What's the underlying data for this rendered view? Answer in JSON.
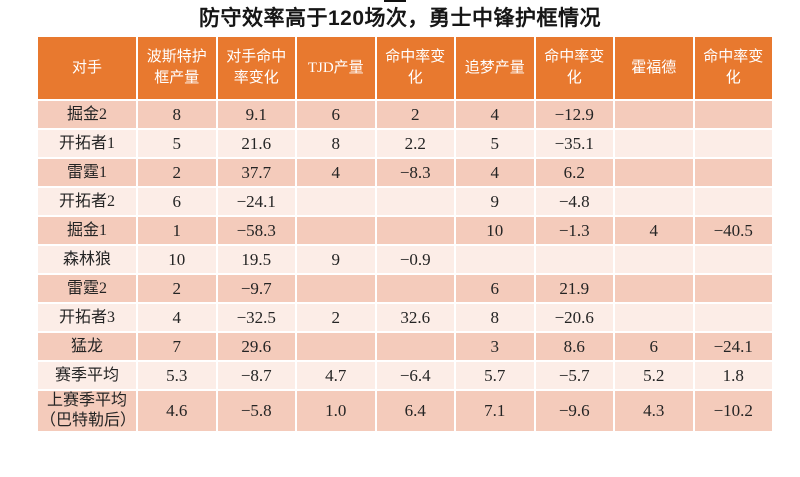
{
  "title": "防守效率高于120场次，勇士中锋护框情况",
  "colors": {
    "header_bg": "#e8792f",
    "row_dark": "#f4cbbb",
    "row_light": "#fcede7",
    "highlight_green": "#2aa368",
    "text": "#242424"
  },
  "chart_data": {
    "type": "table",
    "title": "防守效率高于120场次，勇士中锋护框情况",
    "columns": [
      "对手",
      "波斯特护框产量",
      "对手命中率变化",
      "TJD产量",
      "命中率变化",
      "追梦产量",
      "命中率变化",
      "霍福德",
      "命中率变化"
    ],
    "rows": [
      {
        "label": "掘金2",
        "cells": [
          {
            "v": "8"
          },
          {
            "v": "9.1",
            "green": true
          },
          {
            "v": "6"
          },
          {
            "v": "2",
            "green": true
          },
          {
            "v": "4",
            "green": true
          },
          {
            "v": "-12.9"
          },
          {
            "v": ""
          },
          {
            "v": ""
          }
        ]
      },
      {
        "label": "开拓者1",
        "cells": [
          {
            "v": "5",
            "green": true
          },
          {
            "v": "21.6",
            "green": true
          },
          {
            "v": "8"
          },
          {
            "v": "2.2",
            "green": true
          },
          {
            "v": "5",
            "green": true
          },
          {
            "v": "-35.1"
          },
          {
            "v": ""
          },
          {
            "v": ""
          }
        ]
      },
      {
        "label": "雷霆1",
        "cells": [
          {
            "v": "2",
            "green": true
          },
          {
            "v": "37.7",
            "green": true
          },
          {
            "v": "4",
            "green": true
          },
          {
            "v": "-8.3"
          },
          {
            "v": "4",
            "green": true
          },
          {
            "v": "6.2",
            "green": true
          },
          {
            "v": ""
          },
          {
            "v": ""
          }
        ]
      },
      {
        "label": "开拓者2",
        "cells": [
          {
            "v": "6"
          },
          {
            "v": "-24.1"
          },
          {
            "v": ""
          },
          {
            "v": ""
          },
          {
            "v": "9"
          },
          {
            "v": "-4.8",
            "green": true
          },
          {
            "v": ""
          },
          {
            "v": ""
          }
        ]
      },
      {
        "label": "掘金1",
        "cells": [
          {
            "v": "1",
            "green": true
          },
          {
            "v": "-58.3"
          },
          {
            "v": ""
          },
          {
            "v": ""
          },
          {
            "v": "10"
          },
          {
            "v": "-1.3",
            "green": true
          },
          {
            "v": "4",
            "green": true
          },
          {
            "v": "-40.5"
          }
        ]
      },
      {
        "label": "森林狼",
        "cells": [
          {
            "v": "10"
          },
          {
            "v": "19.5",
            "green": true
          },
          {
            "v": "9"
          },
          {
            "v": "-0.9",
            "green": true
          },
          {
            "v": ""
          },
          {
            "v": ""
          },
          {
            "v": ""
          },
          {
            "v": ""
          }
        ]
      },
      {
        "label": "雷霆2",
        "cells": [
          {
            "v": "2",
            "green": true
          },
          {
            "v": "-9.7"
          },
          {
            "v": ""
          },
          {
            "v": ""
          },
          {
            "v": "6"
          },
          {
            "v": "21.9",
            "green": true
          },
          {
            "v": ""
          },
          {
            "v": ""
          }
        ]
      },
      {
        "label": "开拓者3",
        "cells": [
          {
            "v": "4",
            "green": true
          },
          {
            "v": "-32.5"
          },
          {
            "v": "2",
            "green": true
          },
          {
            "v": "32.6",
            "green": true
          },
          {
            "v": "8"
          },
          {
            "v": "-20.6"
          },
          {
            "v": ""
          },
          {
            "v": ""
          }
        ]
      },
      {
        "label": "猛龙",
        "cells": [
          {
            "v": "7"
          },
          {
            "v": "29.6",
            "green": true
          },
          {
            "v": ""
          },
          {
            "v": ""
          },
          {
            "v": "3",
            "green": true
          },
          {
            "v": "8.6",
            "green": true
          },
          {
            "v": "6"
          },
          {
            "v": "-24.1"
          }
        ]
      },
      {
        "label": "赛季平均",
        "cells": [
          {
            "v": "5.3"
          },
          {
            "v": "-8.7"
          },
          {
            "v": "4.7"
          },
          {
            "v": "-6.4"
          },
          {
            "v": "5.7"
          },
          {
            "v": "-5.7"
          },
          {
            "v": "5.2"
          },
          {
            "v": "1.8"
          }
        ]
      },
      {
        "label": "上赛季平均\n（巴特勒后）",
        "cells": [
          {
            "v": "4.6"
          },
          {
            "v": "-5.8"
          },
          {
            "v": "1.0"
          },
          {
            "v": "6.4"
          },
          {
            "v": "7.1"
          },
          {
            "v": "-9.6"
          },
          {
            "v": "4.3"
          },
          {
            "v": "-10.2"
          }
        ]
      }
    ]
  }
}
